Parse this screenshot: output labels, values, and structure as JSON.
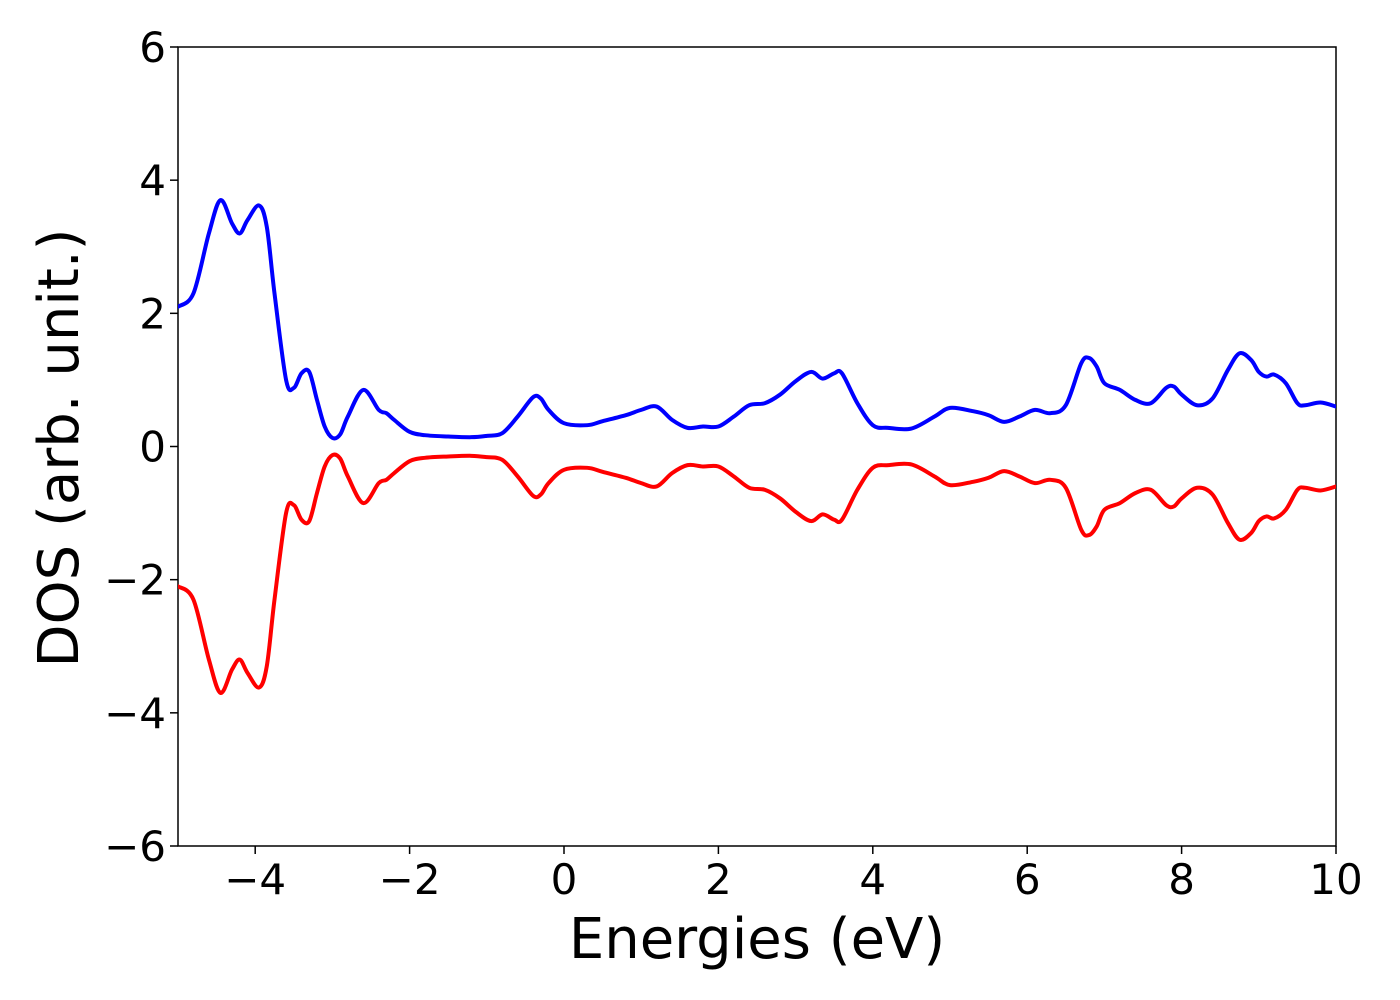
{
  "chart_data": {
    "type": "line",
    "xlabel": "Energies (eV)",
    "ylabel": "DOS (arb. unit.)",
    "xlim": [
      -5,
      10
    ],
    "ylim": [
      -6,
      6
    ],
    "xticks": [
      -4,
      -2,
      0,
      2,
      4,
      6,
      8,
      10
    ],
    "yticks": [
      -6,
      -4,
      -2,
      0,
      2,
      4,
      6
    ],
    "xtick_labels": [
      "−4",
      "−2",
      "0",
      "2",
      "4",
      "6",
      "8",
      "10"
    ],
    "ytick_labels": [
      "−6",
      "−4",
      "−2",
      "0",
      "2",
      "4",
      "6"
    ],
    "grid": false,
    "series": [
      {
        "color": "#0000ff",
        "x": [
          -5.0,
          -4.8,
          -4.6,
          -4.45,
          -4.3,
          -4.2,
          -4.1,
          -3.95,
          -3.85,
          -3.75,
          -3.6,
          -3.5,
          -3.4,
          -3.3,
          -3.2,
          -3.1,
          -3.0,
          -2.9,
          -2.8,
          -2.6,
          -2.4,
          -2.3,
          -2.2,
          -2.0,
          -1.8,
          -1.5,
          -1.2,
          -1.0,
          -0.8,
          -0.6,
          -0.4,
          -0.3,
          -0.2,
          0.0,
          0.3,
          0.5,
          0.8,
          1.0,
          1.2,
          1.4,
          1.6,
          1.8,
          2.0,
          2.2,
          2.4,
          2.6,
          2.8,
          3.0,
          3.2,
          3.35,
          3.5,
          3.6,
          3.8,
          4.0,
          4.2,
          4.5,
          4.8,
          5.0,
          5.3,
          5.5,
          5.7,
          5.9,
          6.1,
          6.3,
          6.5,
          6.7,
          6.8,
          6.9,
          7.0,
          7.2,
          7.4,
          7.6,
          7.8,
          7.9,
          8.0,
          8.2,
          8.4,
          8.6,
          8.75,
          8.9,
          9.0,
          9.1,
          9.2,
          9.35,
          9.5,
          9.6,
          9.8,
          10.0
        ],
        "y": [
          2.1,
          2.3,
          3.2,
          3.7,
          3.35,
          3.2,
          3.4,
          3.62,
          3.3,
          2.3,
          1.0,
          0.88,
          1.1,
          1.12,
          0.7,
          0.3,
          0.13,
          0.18,
          0.45,
          0.85,
          0.55,
          0.5,
          0.4,
          0.22,
          0.17,
          0.15,
          0.14,
          0.16,
          0.2,
          0.45,
          0.74,
          0.72,
          0.55,
          0.35,
          0.32,
          0.38,
          0.47,
          0.55,
          0.6,
          0.4,
          0.28,
          0.3,
          0.3,
          0.45,
          0.62,
          0.65,
          0.78,
          0.98,
          1.12,
          1.02,
          1.1,
          1.1,
          0.65,
          0.32,
          0.28,
          0.27,
          0.45,
          0.58,
          0.53,
          0.47,
          0.37,
          0.45,
          0.55,
          0.5,
          0.62,
          1.25,
          1.33,
          1.2,
          0.95,
          0.85,
          0.7,
          0.65,
          0.88,
          0.9,
          0.78,
          0.62,
          0.72,
          1.15,
          1.4,
          1.3,
          1.12,
          1.05,
          1.08,
          0.95,
          0.65,
          0.62,
          0.66,
          0.6
        ]
      },
      {
        "color": "#ff0000",
        "x": [
          -5.0,
          -4.8,
          -4.6,
          -4.45,
          -4.3,
          -4.2,
          -4.1,
          -3.95,
          -3.85,
          -3.75,
          -3.6,
          -3.5,
          -3.4,
          -3.3,
          -3.2,
          -3.1,
          -3.0,
          -2.9,
          -2.8,
          -2.6,
          -2.4,
          -2.3,
          -2.2,
          -2.0,
          -1.8,
          -1.5,
          -1.2,
          -1.0,
          -0.8,
          -0.6,
          -0.4,
          -0.3,
          -0.2,
          0.0,
          0.3,
          0.5,
          0.8,
          1.0,
          1.2,
          1.4,
          1.6,
          1.8,
          2.0,
          2.2,
          2.4,
          2.6,
          2.8,
          3.0,
          3.2,
          3.35,
          3.5,
          3.6,
          3.8,
          4.0,
          4.2,
          4.5,
          4.8,
          5.0,
          5.3,
          5.5,
          5.7,
          5.9,
          6.1,
          6.3,
          6.5,
          6.7,
          6.8,
          6.9,
          7.0,
          7.2,
          7.4,
          7.6,
          7.8,
          7.9,
          8.0,
          8.2,
          8.4,
          8.6,
          8.75,
          8.9,
          9.0,
          9.1,
          9.2,
          9.35,
          9.5,
          9.6,
          9.8,
          10.0
        ],
        "y": [
          -2.1,
          -2.3,
          -3.2,
          -3.7,
          -3.35,
          -3.2,
          -3.4,
          -3.62,
          -3.3,
          -2.3,
          -1.0,
          -0.88,
          -1.1,
          -1.12,
          -0.7,
          -0.3,
          -0.13,
          -0.18,
          -0.45,
          -0.85,
          -0.55,
          -0.5,
          -0.4,
          -0.22,
          -0.17,
          -0.15,
          -0.14,
          -0.16,
          -0.2,
          -0.45,
          -0.74,
          -0.72,
          -0.55,
          -0.35,
          -0.32,
          -0.38,
          -0.47,
          -0.55,
          -0.6,
          -0.4,
          -0.28,
          -0.3,
          -0.3,
          -0.45,
          -0.62,
          -0.65,
          -0.78,
          -0.98,
          -1.12,
          -1.02,
          -1.1,
          -1.1,
          -0.65,
          -0.32,
          -0.28,
          -0.27,
          -0.45,
          -0.58,
          -0.53,
          -0.47,
          -0.37,
          -0.45,
          -0.55,
          -0.5,
          -0.62,
          -1.25,
          -1.33,
          -1.2,
          -0.95,
          -0.85,
          -0.7,
          -0.65,
          -0.88,
          -0.9,
          -0.78,
          -0.62,
          -0.72,
          -1.15,
          -1.4,
          -1.3,
          -1.12,
          -1.05,
          -1.08,
          -0.95,
          -0.65,
          -0.62,
          -0.66,
          -0.6
        ]
      }
    ]
  }
}
